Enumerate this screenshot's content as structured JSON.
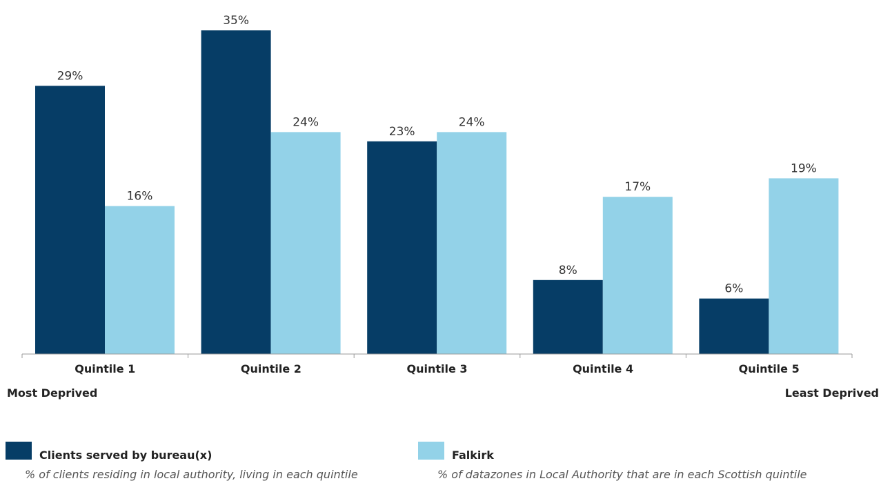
{
  "chart_data": {
    "type": "bar",
    "categories": [
      "Quintile 1",
      "Quintile 2",
      "Quintile 3",
      "Quintile 4",
      "Quintile 5"
    ],
    "series": [
      {
        "name": "Clients served by bureau(x)",
        "description": "% of clients residing in local authority, living in each quintile",
        "color": "#063d66",
        "values": [
          29,
          35,
          23,
          8,
          6
        ],
        "labels": [
          "29%",
          "35%",
          "23%",
          "8%",
          "6%"
        ]
      },
      {
        "name": "Falkirk",
        "description": "% of datazones in Local Authority that are in each Scottish quintile",
        "color": "#93d2e8",
        "values": [
          16,
          24,
          24,
          17,
          19
        ],
        "labels": [
          "16%",
          "24%",
          "24%",
          "17%",
          "19%"
        ]
      }
    ],
    "ylim": [
      0,
      40
    ],
    "grid": false,
    "legend": "bottom",
    "xaxis_end_labels": {
      "left": "Most Deprived",
      "right": "Least Deprived"
    }
  }
}
